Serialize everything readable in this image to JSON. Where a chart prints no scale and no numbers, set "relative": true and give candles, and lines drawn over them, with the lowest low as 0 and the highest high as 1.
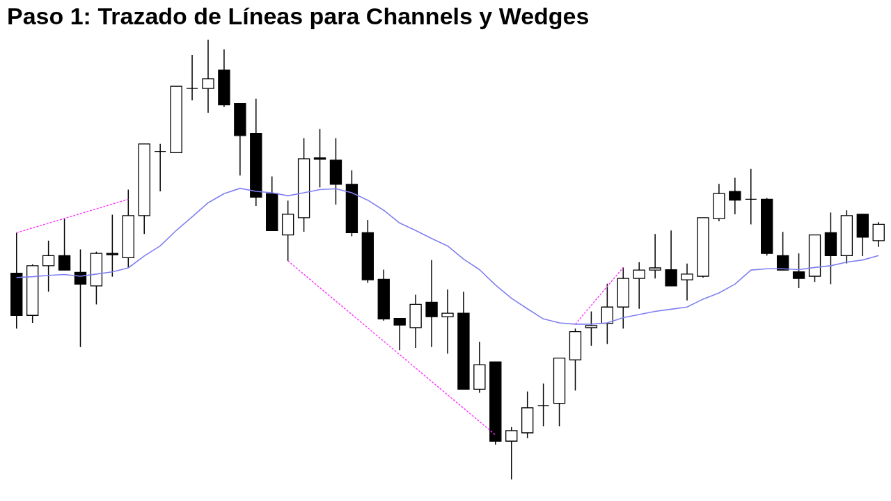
{
  "chart_data": {
    "type": "candlestick",
    "title": "Paso 1: Trazado de Líneas para Channels y Wedges",
    "relative": true,
    "categories": [
      null,
      null,
      null,
      null,
      null,
      null,
      null,
      null,
      null,
      null,
      null,
      null,
      null,
      null,
      null,
      null,
      null,
      null,
      null,
      null,
      null,
      null,
      null,
      null,
      null,
      null,
      null,
      null,
      null,
      null,
      null,
      null,
      null,
      null,
      null,
      null,
      null,
      null,
      null,
      null,
      null,
      null,
      null,
      null,
      null,
      null,
      null,
      null,
      null,
      null,
      null,
      null,
      null,
      null,
      null
    ],
    "ohlc": [
      [
        0.469,
        0.561,
        0.343,
        0.373
      ],
      [
        0.373,
        0.489,
        0.356,
        0.486
      ],
      [
        0.486,
        0.543,
        0.427,
        0.509
      ],
      [
        0.509,
        0.593,
        0.476,
        0.476
      ],
      [
        0.471,
        0.523,
        0.301,
        0.444
      ],
      [
        0.44,
        0.518,
        0.398,
        0.514
      ],
      [
        0.514,
        0.602,
        0.461,
        0.511
      ],
      [
        0.504,
        0.659,
        0.481,
        0.6
      ],
      [
        0.6,
        0.763,
        0.558,
        0.763
      ],
      [
        0.746,
        0.763,
        0.655,
        0.746
      ],
      [
        0.743,
        0.894,
        0.743,
        0.894
      ],
      [
        0.889,
        0.965,
        0.862,
        0.889
      ],
      [
        0.889,
        1.0,
        0.834,
        0.911
      ],
      [
        0.931,
        0.978,
        0.847,
        0.852
      ],
      [
        0.855,
        0.855,
        0.691,
        0.782
      ],
      [
        0.787,
        0.866,
        0.622,
        0.642
      ],
      [
        0.65,
        0.689,
        0.566,
        0.566
      ],
      [
        0.556,
        0.634,
        0.497,
        0.603
      ],
      [
        0.595,
        0.776,
        0.563,
        0.729
      ],
      [
        0.731,
        0.797,
        0.664,
        0.728
      ],
      [
        0.726,
        0.776,
        0.625,
        0.671
      ],
      [
        0.671,
        0.703,
        0.553,
        0.561
      ],
      [
        0.561,
        0.59,
        0.447,
        0.454
      ],
      [
        0.455,
        0.477,
        0.361,
        0.365
      ],
      [
        0.366,
        0.366,
        0.294,
        0.351
      ],
      [
        0.345,
        0.42,
        0.299,
        0.398
      ],
      [
        0.403,
        0.499,
        0.301,
        0.37
      ],
      [
        0.37,
        0.432,
        0.286,
        0.378
      ],
      [
        0.378,
        0.427,
        0.205,
        0.205
      ],
      [
        0.205,
        0.313,
        0.197,
        0.261
      ],
      [
        0.267,
        0.267,
        0.079,
        0.087
      ],
      [
        0.087,
        0.119,
        0.0,
        0.111
      ],
      [
        0.106,
        0.2,
        0.094,
        0.163
      ],
      [
        0.168,
        0.218,
        0.121,
        0.168
      ],
      [
        0.173,
        0.276,
        0.121,
        0.276
      ],
      [
        0.272,
        0.343,
        0.202,
        0.336
      ],
      [
        0.345,
        0.382,
        0.304,
        0.35
      ],
      [
        0.355,
        0.445,
        0.308,
        0.392
      ],
      [
        0.392,
        0.482,
        0.343,
        0.457
      ],
      [
        0.457,
        0.494,
        0.388,
        0.476
      ],
      [
        0.476,
        0.558,
        0.457,
        0.481
      ],
      [
        0.477,
        0.566,
        0.44,
        0.44
      ],
      [
        0.454,
        0.491,
        0.407,
        0.467
      ],
      [
        0.462,
        0.595,
        0.459,
        0.595
      ],
      [
        0.593,
        0.672,
        0.587,
        0.65
      ],
      [
        0.655,
        0.686,
        0.603,
        0.635
      ],
      [
        0.637,
        0.706,
        0.58,
        0.637
      ],
      [
        0.637,
        0.64,
        0.509,
        0.514
      ],
      [
        0.509,
        0.563,
        0.476,
        0.476
      ],
      [
        0.472,
        0.514,
        0.435,
        0.457
      ],
      [
        0.462,
        0.556,
        0.449,
        0.556
      ],
      [
        0.561,
        0.607,
        0.444,
        0.509
      ],
      [
        0.509,
        0.612,
        0.491,
        0.6
      ],
      [
        0.603,
        0.603,
        0.508,
        0.551
      ],
      [
        0.543,
        0.585,
        0.529,
        0.58
      ]
    ],
    "series": [
      {
        "type": "line",
        "color": "#8080f0",
        "values": [
          0.459,
          0.461,
          0.464,
          0.466,
          0.462,
          0.467,
          0.472,
          0.481,
          0.508,
          0.531,
          0.566,
          0.597,
          0.629,
          0.65,
          0.662,
          0.655,
          0.652,
          0.645,
          0.652,
          0.659,
          0.661,
          0.652,
          0.635,
          0.612,
          0.583,
          0.566,
          0.548,
          0.531,
          0.501,
          0.477,
          0.442,
          0.412,
          0.388,
          0.365,
          0.356,
          0.353,
          0.353,
          0.356,
          0.368,
          0.375,
          0.382,
          0.387,
          0.392,
          0.41,
          0.424,
          0.444,
          0.476,
          0.479,
          0.479,
          0.477,
          0.482,
          0.486,
          0.494,
          0.499,
          0.509
        ]
      },
      {
        "type": "line",
        "color": "#ff33ff",
        "line_style": "dashed",
        "values": [
          0.561,
          null,
          null,
          null,
          null,
          null,
          null,
          0.637,
          null,
          null,
          null,
          null,
          null,
          null,
          null,
          null,
          null,
          null,
          null,
          null,
          null,
          null,
          null,
          null,
          null,
          null,
          null,
          null,
          null,
          null,
          null,
          null,
          null,
          null,
          null,
          null,
          null,
          null,
          null,
          null,
          null,
          null,
          null,
          null,
          null,
          null,
          null,
          null,
          null,
          null,
          null,
          null,
          null,
          null,
          null
        ]
      },
      {
        "type": "line",
        "color": "#ff33ff",
        "line_style": "dashed",
        "values": [
          null,
          null,
          null,
          null,
          null,
          null,
          null,
          null,
          null,
          null,
          null,
          null,
          null,
          null,
          null,
          null,
          null,
          0.497,
          null,
          null,
          null,
          null,
          null,
          null,
          null,
          null,
          null,
          null,
          null,
          null,
          0.101,
          null,
          null,
          null,
          null,
          null,
          null,
          null,
          null,
          null,
          null,
          null,
          null,
          null,
          null,
          null,
          null,
          null,
          null,
          null,
          null,
          null,
          null,
          null,
          null
        ]
      },
      {
        "type": "line",
        "color": "#ff33ff",
        "line_style": "dashed",
        "values": [
          null,
          null,
          null,
          null,
          null,
          null,
          null,
          null,
          null,
          null,
          null,
          null,
          null,
          null,
          null,
          null,
          null,
          null,
          null,
          null,
          null,
          null,
          null,
          null,
          null,
          null,
          null,
          null,
          null,
          null,
          null,
          null,
          null,
          null,
          null,
          0.353,
          null,
          null,
          0.482,
          null,
          null,
          null,
          null,
          null,
          null,
          null,
          null,
          null,
          null,
          null,
          null,
          null,
          null,
          null,
          null
        ]
      }
    ]
  }
}
